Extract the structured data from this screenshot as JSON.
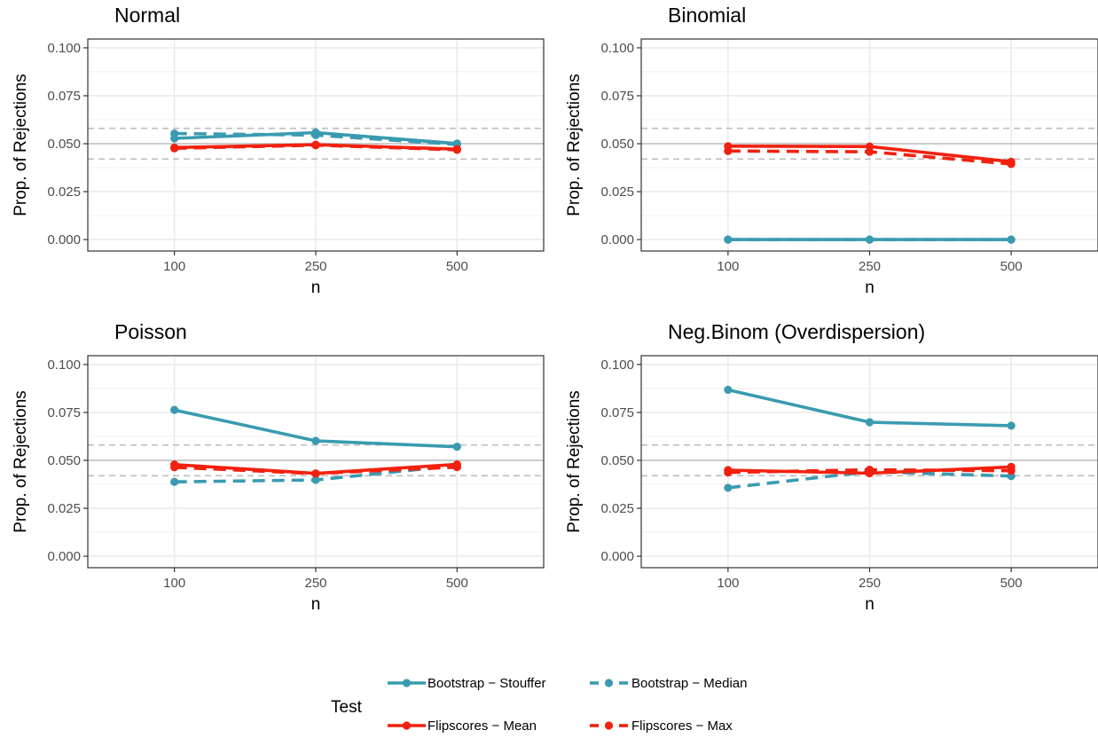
{
  "chart_data": {
    "type": "line",
    "x": [
      100,
      250,
      500
    ],
    "x_tick_labels": [
      "100",
      "250",
      "500"
    ],
    "y_tick_labels": [
      "0.000",
      "0.025",
      "0.050",
      "0.075",
      "0.100"
    ],
    "ylim": [
      0,
      0.1
    ],
    "xlabel": "n",
    "ylabel": "Prop. of Rejections",
    "reference_lines": {
      "solid": 0.05,
      "dashed": [
        0.042,
        0.058
      ]
    },
    "legend": {
      "title": "Test",
      "placement": "bottom",
      "entries": [
        {
          "name": "Bootstrap − Stouffer",
          "color": "#3a9bb0",
          "linetype": "solid"
        },
        {
          "name": "Bootstrap − Median",
          "color": "#3a9bb0",
          "linetype": "dashed"
        },
        {
          "name": "Flipscores − Mean",
          "color": "#f2210f",
          "linetype": "solid"
        },
        {
          "name": "Flipscores − Max",
          "color": "#f2210f",
          "linetype": "dashed"
        }
      ]
    },
    "panels": [
      {
        "title": "Normal",
        "series": [
          {
            "name": "Bootstrap − Stouffer",
            "values": [
              0.0528,
              0.0558,
              0.0501
            ]
          },
          {
            "name": "Bootstrap − Median",
            "values": [
              0.0553,
              0.0545,
              0.0496
            ]
          },
          {
            "name": "Flipscores − Mean",
            "values": [
              0.048,
              0.0495,
              0.0472
            ]
          },
          {
            "name": "Flipscores − Max",
            "values": [
              0.0476,
              0.0492,
              0.0468
            ]
          }
        ]
      },
      {
        "title": "Binomial",
        "series": [
          {
            "name": "Bootstrap − Stouffer",
            "values": [
              0.0,
              0.0,
              0.0
            ]
          },
          {
            "name": "Bootstrap − Median",
            "values": [
              0.0,
              0.0,
              0.0
            ]
          },
          {
            "name": "Flipscores − Mean",
            "values": [
              0.0487,
              0.0485,
              0.0406
            ]
          },
          {
            "name": "Flipscores − Max",
            "values": [
              0.0462,
              0.0458,
              0.0394
            ]
          }
        ]
      },
      {
        "title": "Poisson",
        "series": [
          {
            "name": "Bootstrap − Stouffer",
            "values": [
              0.0763,
              0.0602,
              0.0571
            ]
          },
          {
            "name": "Bootstrap − Median",
            "values": [
              0.0388,
              0.0398,
              0.0473
            ]
          },
          {
            "name": "Flipscores − Mean",
            "values": [
              0.0478,
              0.0432,
              0.0479
            ]
          },
          {
            "name": "Flipscores − Max",
            "values": [
              0.0464,
              0.0431,
              0.0465
            ]
          }
        ]
      },
      {
        "title": "Neg.Binom (Overdispersion)",
        "series": [
          {
            "name": "Bootstrap − Stouffer",
            "values": [
              0.0868,
              0.0699,
              0.0681
            ]
          },
          {
            "name": "Bootstrap − Median",
            "values": [
              0.0357,
              0.0441,
              0.0418
            ]
          },
          {
            "name": "Flipscores − Mean",
            "values": [
              0.0449,
              0.0433,
              0.0466
            ]
          },
          {
            "name": "Flipscores − Max",
            "values": [
              0.0437,
              0.0451,
              0.0446
            ]
          }
        ]
      }
    ]
  }
}
